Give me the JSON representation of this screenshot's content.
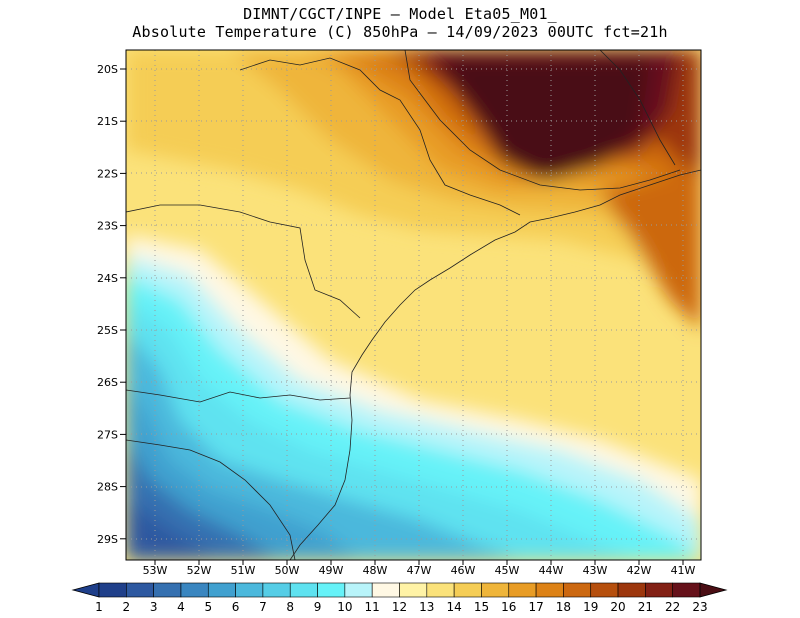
{
  "header": {
    "line1": "DIMNT/CGCT/INPE –  Model Eta05_M01_",
    "line2": "Absolute Temperature (C) 850hPa –  14/09/2023 00UTC fct=21h"
  },
  "axes": {
    "lat_labels": [
      "20S",
      "21S",
      "22S",
      "23S",
      "24S",
      "25S",
      "26S",
      "27S",
      "28S",
      "29S"
    ],
    "lon_labels": [
      "53W",
      "52W",
      "51W",
      "50W",
      "49W",
      "48W",
      "47W",
      "46W",
      "45W",
      "44W",
      "43W",
      "42W",
      "41W"
    ]
  },
  "colorbar": {
    "labels": [
      "1",
      "2",
      "3",
      "4",
      "5",
      "6",
      "7",
      "8",
      "9",
      "10",
      "11",
      "12",
      "13",
      "14",
      "15",
      "16",
      "17",
      "18",
      "19",
      "20",
      "21",
      "22",
      "23"
    ],
    "colors": [
      "#1f3f8a",
      "#2d58a0",
      "#3570b0",
      "#3a86c0",
      "#40a0cf",
      "#4bb8dc",
      "#55cde6",
      "#5ee2f0",
      "#66f2f8",
      "#b8f4fa",
      "#fff8e4",
      "#fff3a6",
      "#fbe27a",
      "#f5cd55",
      "#efb53a",
      "#e89c25",
      "#dd8216",
      "#cc6810",
      "#b64f0d",
      "#9c360c",
      "#822014",
      "#66111a",
      "#4a0e14"
    ]
  }
}
